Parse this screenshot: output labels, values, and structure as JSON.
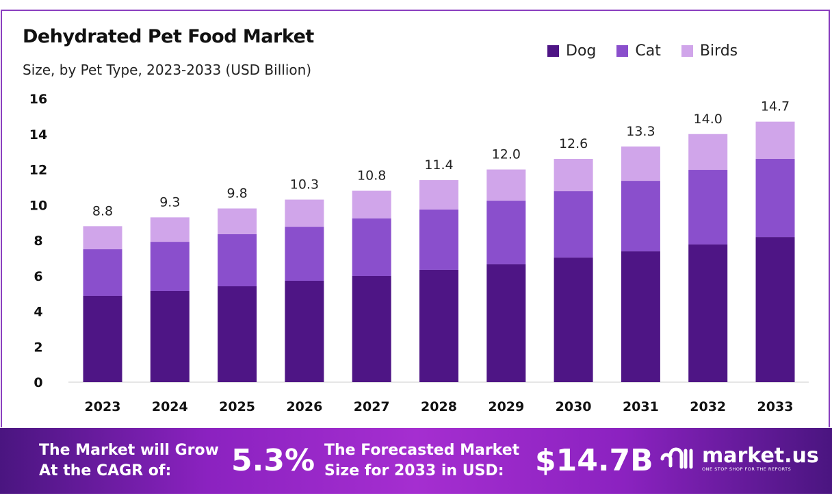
{
  "chart_data": {
    "type": "bar",
    "stacked": true,
    "title": "Dehydrated Pet Food Market",
    "subtitle": "Size, by Pet Type, 2023-2033 (USD Billion)",
    "categories": [
      "2023",
      "2024",
      "2025",
      "2026",
      "2027",
      "2028",
      "2029",
      "2030",
      "2031",
      "2032",
      "2033"
    ],
    "series": [
      {
        "name": "Dog",
        "color": "#4e1585",
        "values": [
          4.87,
          5.14,
          5.41,
          5.72,
          5.99,
          6.34,
          6.65,
          7.03,
          7.38,
          7.77,
          8.19
        ]
      },
      {
        "name": "Cat",
        "color": "#8a4fcc",
        "values": [
          2.63,
          2.78,
          2.94,
          3.05,
          3.25,
          3.4,
          3.59,
          3.75,
          3.98,
          4.21,
          4.41
        ]
      },
      {
        "name": "Birds",
        "color": "#d0a5ea",
        "values": [
          1.3,
          1.38,
          1.45,
          1.53,
          1.56,
          1.66,
          1.76,
          1.82,
          1.94,
          2.02,
          2.1
        ]
      }
    ],
    "totals": [
      "8.8",
      "9.3",
      "9.8",
      "10.3",
      "10.8",
      "11.4",
      "12.0",
      "12.6",
      "13.3",
      "14.0",
      "14.7"
    ],
    "yticks": [
      "0",
      "2",
      "4",
      "6",
      "8",
      "10",
      "12",
      "14",
      "16"
    ],
    "ylim": [
      0,
      16
    ],
    "grid": false,
    "legend": "top-right"
  },
  "footer": {
    "cagr_label_1": "The Market will Grow",
    "cagr_label_2": "At the CAGR of:",
    "cagr_value": "5.3%",
    "forecast_label_1": "The Forecasted Market",
    "forecast_label_2": "Size for 2033 in USD:",
    "forecast_value": "$14.7B",
    "logo_text": "market.us",
    "logo_tagline": "ONE STOP SHOP FOR THE REPORTS"
  }
}
